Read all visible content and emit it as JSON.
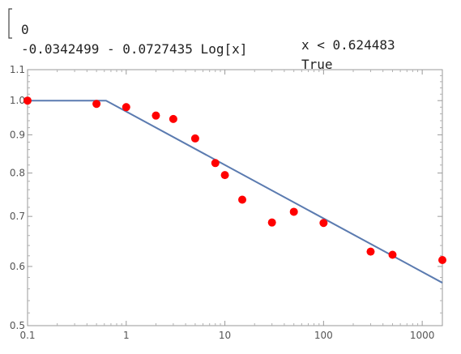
{
  "formula": {
    "rows": [
      {
        "value": "0",
        "condition": "x < 0.624483"
      },
      {
        "value": "-0.0342499 - 0.0727435 Log[x]",
        "condition": "True"
      }
    ]
  },
  "chart_data": {
    "type": "scatter",
    "title": "",
    "xlabel": "",
    "ylabel": "",
    "x_scale": "log",
    "y_scale": "log",
    "xlim": [
      0.1,
      1600
    ],
    "ylim": [
      0.5,
      1.1
    ],
    "x_ticks": [
      {
        "value": 0.1,
        "label": "0.1"
      },
      {
        "value": 1,
        "label": "1"
      },
      {
        "value": 10,
        "label": "10"
      },
      {
        "value": 100,
        "label": "100"
      },
      {
        "value": 1000,
        "label": "1000"
      }
    ],
    "y_ticks": [
      {
        "value": 0.5,
        "label": "0.5"
      },
      {
        "value": 0.6,
        "label": "0.6"
      },
      {
        "value": 0.7,
        "label": "0.7"
      },
      {
        "value": 0.8,
        "label": "0.8"
      },
      {
        "value": 0.9,
        "label": "0.9"
      },
      {
        "value": 1.0,
        "label": "1.0"
      },
      {
        "value": 1.1,
        "label": "1.1"
      }
    ],
    "grid": false,
    "series": [
      {
        "type": "scatter",
        "color": "#ff0000",
        "x": [
          0.1,
          0.5,
          1,
          2,
          3,
          5,
          8,
          10,
          15,
          30,
          50,
          100,
          300,
          500,
          1600
        ],
        "y": [
          1.0,
          0.99,
          0.98,
          0.955,
          0.945,
          0.89,
          0.825,
          0.795,
          0.737,
          0.687,
          0.71,
          0.686,
          0.628,
          0.622,
          0.612
        ]
      },
      {
        "type": "line",
        "color": "#5b7bb0",
        "x": [
          0.1,
          0.624483,
          1600
        ],
        "y": [
          1.0,
          1.0,
          0.5706
        ]
      }
    ]
  }
}
